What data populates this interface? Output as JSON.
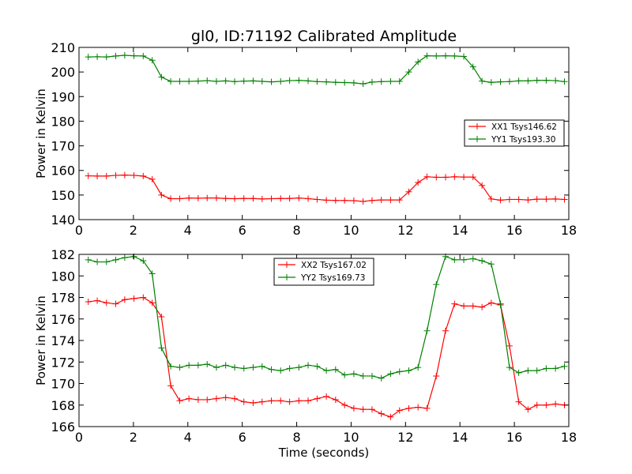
{
  "chart_data": [
    {
      "type": "line",
      "title": "gl0, ID:71192 Calibrated Amplitude",
      "xlabel": "",
      "ylabel": "Power in Kelvin",
      "xlim": [
        0,
        18
      ],
      "ylim": [
        140,
        210
      ],
      "xticks": [
        "0",
        "2",
        "4",
        "6",
        "8",
        "10",
        "12",
        "14",
        "16",
        "18"
      ],
      "yticks": [
        "140",
        "150",
        "160",
        "170",
        "180",
        "190",
        "200",
        "210"
      ],
      "legend_position": "right",
      "grid": false,
      "x": [
        0.34,
        0.67,
        1.01,
        1.35,
        1.68,
        2.02,
        2.36,
        2.69,
        3.03,
        3.37,
        3.7,
        4.04,
        4.38,
        4.71,
        5.05,
        5.39,
        5.72,
        6.06,
        6.4,
        6.73,
        7.07,
        7.41,
        7.74,
        8.08,
        8.42,
        8.75,
        9.09,
        9.43,
        9.76,
        10.1,
        10.44,
        10.77,
        11.11,
        11.45,
        11.78,
        12.12,
        12.46,
        12.79,
        13.13,
        13.47,
        13.8,
        14.14,
        14.48,
        14.81,
        15.15,
        15.49,
        15.82,
        16.16,
        16.5,
        16.83,
        17.17,
        17.51,
        17.84
      ],
      "series": [
        {
          "name": "XX1 Tsys146.62",
          "color": "#ff0000",
          "marker": "+",
          "values": [
            157.8,
            157.7,
            157.7,
            158.0,
            158.1,
            158.0,
            157.7,
            156.4,
            150.0,
            148.5,
            148.5,
            148.8,
            148.7,
            148.8,
            148.8,
            148.6,
            148.5,
            148.6,
            148.6,
            148.4,
            148.5,
            148.6,
            148.6,
            148.8,
            148.5,
            148.2,
            147.9,
            147.8,
            147.8,
            147.7,
            147.4,
            147.8,
            148.0,
            148.0,
            148.0,
            151.3,
            155.1,
            157.4,
            157.2,
            157.2,
            157.4,
            157.3,
            157.3,
            153.9,
            148.4,
            147.9,
            148.2,
            148.2,
            148.0,
            148.3,
            148.3,
            148.4,
            148.2
          ]
        },
        {
          "name": "YY1 Tsys193.30",
          "color": "#008000",
          "marker": "+",
          "values": [
            206.1,
            206.2,
            206.1,
            206.5,
            206.8,
            206.6,
            206.5,
            204.8,
            197.9,
            196.2,
            196.2,
            196.2,
            196.3,
            196.5,
            196.2,
            196.4,
            196.1,
            196.3,
            196.4,
            196.2,
            196.0,
            196.2,
            196.5,
            196.6,
            196.4,
            196.1,
            196.0,
            195.8,
            195.7,
            195.6,
            195.2,
            195.9,
            196.1,
            196.2,
            196.2,
            200.0,
            204.1,
            206.6,
            206.5,
            206.6,
            206.5,
            206.3,
            202.1,
            196.3,
            195.8,
            196.0,
            196.1,
            196.4,
            196.4,
            196.6,
            196.6,
            196.5,
            196.1
          ]
        }
      ]
    },
    {
      "type": "line",
      "title": "",
      "xlabel": "Time (seconds)",
      "ylabel": "Power in Kelvin",
      "xlim": [
        0,
        18
      ],
      "ylim": [
        166,
        182
      ],
      "xticks": [
        "0",
        "2",
        "4",
        "6",
        "8",
        "10",
        "12",
        "14",
        "16",
        "18"
      ],
      "yticks": [
        "166",
        "168",
        "170",
        "172",
        "174",
        "176",
        "178",
        "180",
        "182"
      ],
      "legend_position": "upper center",
      "grid": false,
      "x": [
        0.34,
        0.67,
        1.01,
        1.35,
        1.68,
        2.02,
        2.36,
        2.69,
        3.03,
        3.37,
        3.7,
        4.04,
        4.38,
        4.71,
        5.05,
        5.39,
        5.72,
        6.06,
        6.4,
        6.73,
        7.07,
        7.41,
        7.74,
        8.08,
        8.42,
        8.75,
        9.09,
        9.43,
        9.76,
        10.1,
        10.44,
        10.77,
        11.11,
        11.45,
        11.78,
        12.12,
        12.46,
        12.79,
        13.13,
        13.47,
        13.8,
        14.14,
        14.48,
        14.81,
        15.15,
        15.49,
        15.82,
        16.16,
        16.5,
        16.83,
        17.17,
        17.51,
        17.84
      ],
      "series": [
        {
          "name": "XX2 Tsys167.02",
          "color": "#ff0000",
          "marker": "+",
          "values": [
            177.6,
            177.7,
            177.5,
            177.4,
            177.8,
            177.9,
            178.0,
            177.5,
            176.2,
            169.8,
            168.4,
            168.6,
            168.5,
            168.5,
            168.6,
            168.7,
            168.6,
            168.3,
            168.2,
            168.3,
            168.4,
            168.4,
            168.3,
            168.4,
            168.4,
            168.6,
            168.8,
            168.5,
            168.0,
            167.7,
            167.6,
            167.6,
            167.2,
            166.9,
            167.5,
            167.7,
            167.8,
            167.7,
            170.7,
            174.9,
            177.4,
            177.2,
            177.2,
            177.1,
            177.5,
            177.3,
            173.5,
            168.3,
            167.6,
            168.0,
            168.0,
            168.1,
            168.0
          ]
        },
        {
          "name": "YY2 Tsys169.73",
          "color": "#008000",
          "marker": "+",
          "values": [
            181.5,
            181.3,
            181.3,
            181.5,
            181.7,
            181.8,
            181.4,
            180.2,
            173.3,
            171.6,
            171.5,
            171.7,
            171.7,
            171.8,
            171.5,
            171.7,
            171.5,
            171.4,
            171.5,
            171.6,
            171.3,
            171.2,
            171.4,
            171.5,
            171.7,
            171.6,
            171.2,
            171.3,
            170.8,
            170.9,
            170.7,
            170.7,
            170.5,
            170.9,
            171.1,
            171.2,
            171.5,
            174.9,
            179.2,
            181.8,
            181.5,
            181.5,
            181.6,
            181.4,
            181.1,
            177.4,
            171.5,
            171.0,
            171.2,
            171.2,
            171.4,
            171.4,
            171.6
          ]
        }
      ]
    }
  ]
}
